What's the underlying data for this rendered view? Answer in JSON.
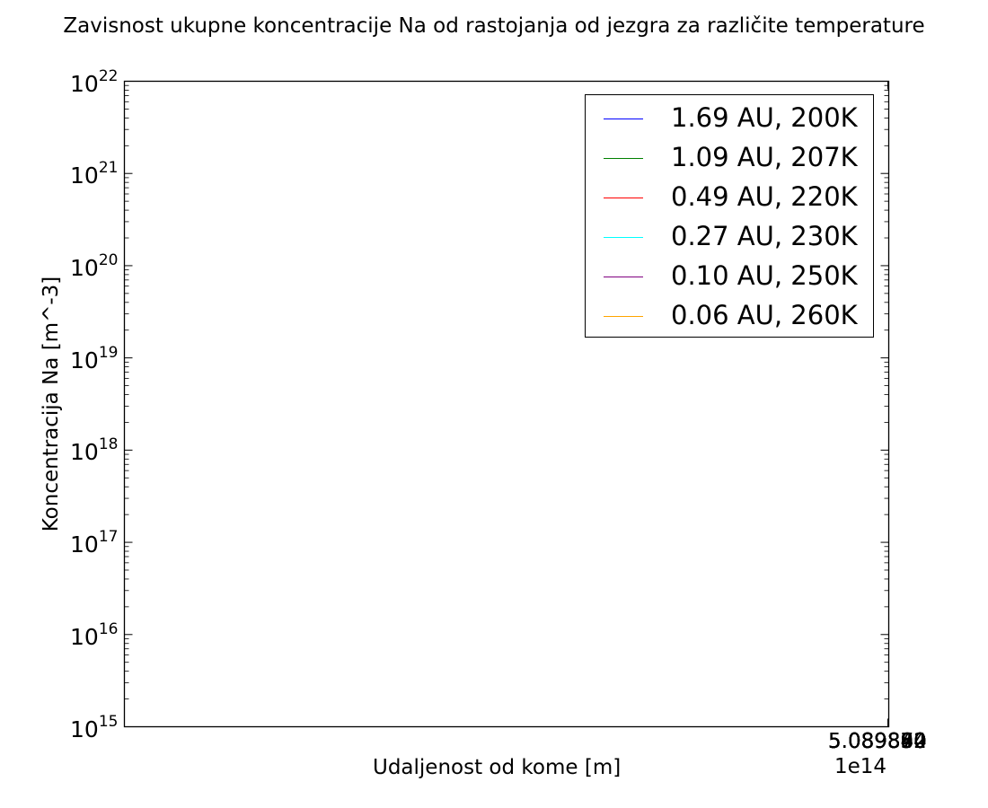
{
  "chart_data": {
    "type": "line",
    "title": "Zavisnost ukupne koncentracije Na od rastojanja od jezgra za različite temperature",
    "xlabel": "Udaljenost od kome [m]",
    "ylabel": "Koncentracija Na [m^-3]",
    "x_offset_label": "1e14",
    "x_tick_labels": [
      "5.089874",
      "5.089892",
      "5.089880",
      "5.089870",
      "5.089860",
      "5.089850",
      "5.089840"
    ],
    "yscale": "log",
    "ylim": [
      1000000000000000.0,
      1e+22
    ],
    "y_ticks": [
      {
        "base": "10",
        "exp": "22",
        "value": 1e+22
      },
      {
        "base": "10",
        "exp": "21",
        "value": 1e+21
      },
      {
        "base": "10",
        "exp": "20",
        "value": 1e+20
      },
      {
        "base": "10",
        "exp": "19",
        "value": 1e+19
      },
      {
        "base": "10",
        "exp": "18",
        "value": 1e+18
      },
      {
        "base": "10",
        "exp": "17",
        "value": 1e+17
      },
      {
        "base": "10",
        "exp": "16",
        "value": 1e+16
      },
      {
        "base": "10",
        "exp": "15",
        "value": 1000000000000000.0
      }
    ],
    "grid": false,
    "legend_position": "top-right",
    "series": [
      {
        "name": "1.69 AU, 200K",
        "color": "#0000ff",
        "values": []
      },
      {
        "name": "1.09 AU, 207K",
        "color": "#008000",
        "values": []
      },
      {
        "name": "0.49 AU, 220K",
        "color": "#ff0000",
        "values": []
      },
      {
        "name": "0.27 AU, 230K",
        "color": "#00ffff",
        "values": []
      },
      {
        "name": "0.10 AU, 250K",
        "color": "#800080",
        "values": []
      },
      {
        "name": "0.06 AU, 260K",
        "color": "#ffa500",
        "values": []
      }
    ]
  }
}
